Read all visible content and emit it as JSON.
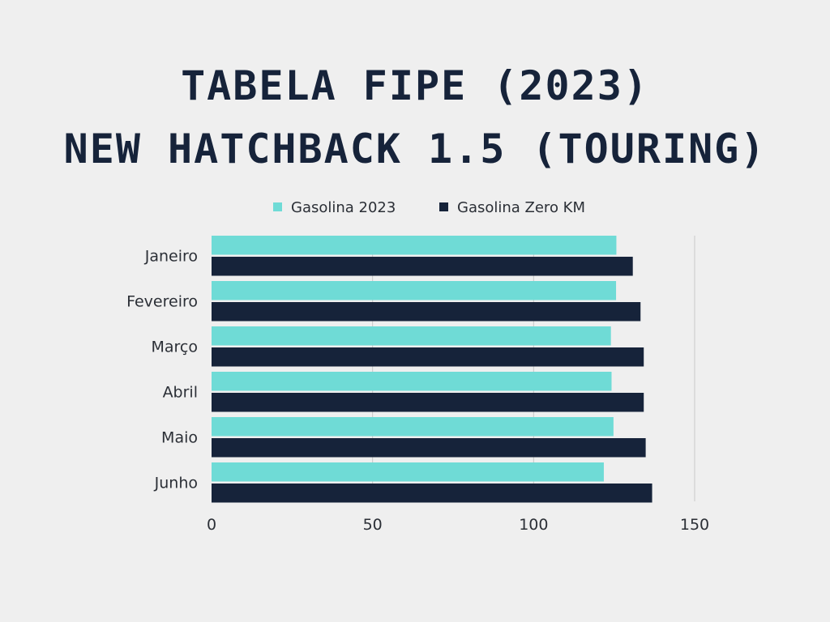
{
  "chart_data": {
    "type": "bar",
    "orientation": "horizontal",
    "title_lines": [
      "TABELA FIPE (2023)",
      "NEW HATCHBACK 1.5 (TOURING)"
    ],
    "categories": [
      "Janeiro",
      "Fevereiro",
      "Março",
      "Abril",
      "Maio",
      "Junho"
    ],
    "series": [
      {
        "name": "Gasolina 2023",
        "color": "#6fdbd6",
        "values": [
          125.7,
          125.6,
          124.0,
          124.2,
          124.8,
          121.8
        ]
      },
      {
        "name": "Gasolina Zero KM",
        "color": "#16233a",
        "values": [
          130.8,
          133.2,
          134.2,
          134.2,
          134.8,
          136.8
        ]
      }
    ],
    "xlim": [
      0,
      150
    ],
    "xticks": [
      0,
      50,
      100,
      150
    ],
    "grid": true,
    "legend_position": "top"
  }
}
